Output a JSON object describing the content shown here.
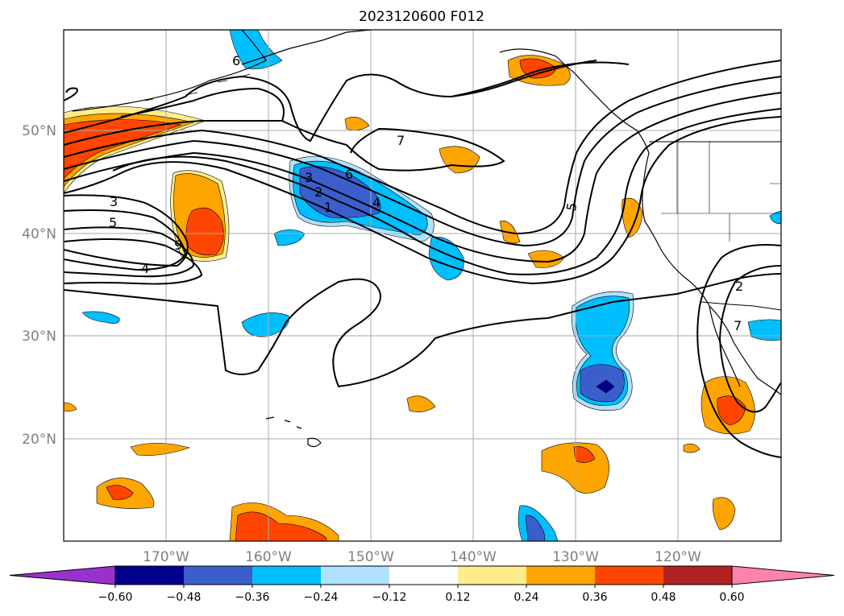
{
  "title": "2023120600 F012",
  "lon_ticks": [
    "170°W",
    "160°W",
    "150°W",
    "140°W",
    "130°W",
    "120°W"
  ],
  "lat_ticks": [
    "50°N",
    "40°N",
    "30°N",
    "20°N"
  ],
  "colorbar": {
    "levels": [
      "-0.60",
      "-0.48",
      "-0.36",
      "-0.24",
      "-0.12",
      "0.12",
      "0.24",
      "0.36",
      "0.48",
      "0.60"
    ],
    "colors": [
      "#9932cc",
      "#00008b",
      "#3a5fcd",
      "#00bfff",
      "#b0e2ff",
      "#ffffff",
      "#ffec8b",
      "#ffa500",
      "#ff4500",
      "#b22222",
      "#ff82ab"
    ]
  },
  "contour_labels": [
    "6",
    "7",
    "3",
    "6",
    "2",
    "1",
    "4",
    "5",
    "3",
    "5",
    "9",
    "4",
    "2",
    "7"
  ]
}
